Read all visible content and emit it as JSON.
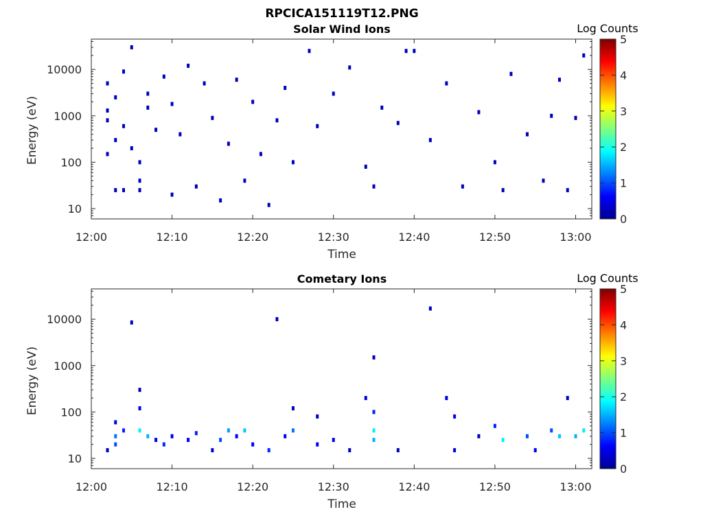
{
  "figure_title": "RPCICA151119T12.PNG",
  "chart_data": [
    {
      "type": "heatmap",
      "title": "Solar Wind Ions",
      "xlabel": "Time",
      "ylabel": "Energy (eV)",
      "yscale": "log",
      "xlim": [
        "12:00",
        "13:02"
      ],
      "ylim": [
        6,
        45000
      ],
      "x_ticks": [
        "12:00",
        "12:10",
        "12:20",
        "12:30",
        "12:40",
        "12:50",
        "13:00"
      ],
      "y_ticks": [
        10,
        100,
        1000,
        10000
      ],
      "y_tick_labels": [
        "10",
        "100",
        "1000",
        "10000"
      ],
      "colorbar": {
        "label": "Log Counts",
        "range": [
          0,
          5
        ],
        "ticks": [
          "0",
          "1",
          "2",
          "3",
          "4",
          "5"
        ],
        "colormap": "jet"
      },
      "data_description": "sparse low-count events across 10 eV - 20 keV, denser below 50 eV",
      "cells": [
        {
          "t": "12:02",
          "e": 1300,
          "c": 0.2
        },
        {
          "t": "12:02",
          "e": 5000,
          "c": 0.2
        },
        {
          "t": "12:02",
          "e": 800,
          "c": 0.2
        },
        {
          "t": "12:02",
          "e": 150,
          "c": 0.2
        },
        {
          "t": "12:03",
          "e": 2500,
          "c": 0.2
        },
        {
          "t": "12:03",
          "e": 300,
          "c": 0.2
        },
        {
          "t": "12:03",
          "e": 25,
          "c": 0.3
        },
        {
          "t": "12:04",
          "e": 25,
          "c": 0.3
        },
        {
          "t": "12:04",
          "e": 9000,
          "c": 0.2
        },
        {
          "t": "12:04",
          "e": 600,
          "c": 0.2
        },
        {
          "t": "12:05",
          "e": 200,
          "c": 0.2
        },
        {
          "t": "12:05",
          "e": 30000,
          "c": 0.2
        },
        {
          "t": "12:06",
          "e": 40,
          "c": 0.4
        },
        {
          "t": "12:06",
          "e": 25,
          "c": 0.4
        },
        {
          "t": "12:06",
          "e": 100,
          "c": 0.3
        },
        {
          "t": "12:07",
          "e": 3000,
          "c": 0.2
        },
        {
          "t": "12:07",
          "e": 1500,
          "c": 0.2
        },
        {
          "t": "12:08",
          "e": 500,
          "c": 0.2
        },
        {
          "t": "12:09",
          "e": 7000,
          "c": 0.2
        },
        {
          "t": "12:10",
          "e": 20,
          "c": 0.3
        },
        {
          "t": "12:10",
          "e": 1800,
          "c": 0.2
        },
        {
          "t": "12:11",
          "e": 400,
          "c": 0.2
        },
        {
          "t": "12:12",
          "e": 12000,
          "c": 0.2
        },
        {
          "t": "12:13",
          "e": 30,
          "c": 0.2
        },
        {
          "t": "12:14",
          "e": 5000,
          "c": 0.2
        },
        {
          "t": "12:15",
          "e": 900,
          "c": 0.2
        },
        {
          "t": "12:16",
          "e": 15,
          "c": 0.2
        },
        {
          "t": "12:17",
          "e": 250,
          "c": 0.2
        },
        {
          "t": "12:18",
          "e": 6000,
          "c": 0.2
        },
        {
          "t": "12:19",
          "e": 40,
          "c": 0.2
        },
        {
          "t": "12:20",
          "e": 2000,
          "c": 0.2
        },
        {
          "t": "12:21",
          "e": 150,
          "c": 0.2
        },
        {
          "t": "12:22",
          "e": 12,
          "c": 0.2
        },
        {
          "t": "12:23",
          "e": 800,
          "c": 0.2
        },
        {
          "t": "12:24",
          "e": 4000,
          "c": 0.2
        },
        {
          "t": "12:25",
          "e": 100,
          "c": 0.2
        },
        {
          "t": "12:27",
          "e": 25000,
          "c": 0.2
        },
        {
          "t": "12:28",
          "e": 600,
          "c": 0.2
        },
        {
          "t": "12:30",
          "e": 3000,
          "c": 0.2
        },
        {
          "t": "12:32",
          "e": 11000,
          "c": 0.2
        },
        {
          "t": "12:34",
          "e": 80,
          "c": 0.3
        },
        {
          "t": "12:35",
          "e": 30,
          "c": 0.3
        },
        {
          "t": "12:36",
          "e": 1500,
          "c": 0.2
        },
        {
          "t": "12:38",
          "e": 700,
          "c": 0.2
        },
        {
          "t": "12:39",
          "e": 25000,
          "c": 0.2
        },
        {
          "t": "12:40",
          "e": 25000,
          "c": 0.2
        },
        {
          "t": "12:42",
          "e": 300,
          "c": 0.2
        },
        {
          "t": "12:44",
          "e": 5000,
          "c": 0.2
        },
        {
          "t": "12:46",
          "e": 30,
          "c": 0.2
        },
        {
          "t": "12:48",
          "e": 1200,
          "c": 0.2
        },
        {
          "t": "12:50",
          "e": 100,
          "c": 0.2
        },
        {
          "t": "12:51",
          "e": 25,
          "c": 0.3
        },
        {
          "t": "12:52",
          "e": 8000,
          "c": 0.2
        },
        {
          "t": "12:54",
          "e": 400,
          "c": 0.2
        },
        {
          "t": "12:56",
          "e": 40,
          "c": 0.3
        },
        {
          "t": "12:57",
          "e": 1000,
          "c": 0.2
        },
        {
          "t": "12:58",
          "e": 6000,
          "c": 0.2
        },
        {
          "t": "12:59",
          "e": 25,
          "c": 0.3
        },
        {
          "t": "13:00",
          "e": 900,
          "c": 0.2
        },
        {
          "t": "13:01",
          "e": 20000,
          "c": 0.2
        }
      ]
    },
    {
      "type": "heatmap",
      "title": "Cometary Ions",
      "xlabel": "Time",
      "ylabel": "Energy (eV)",
      "yscale": "log",
      "xlim": [
        "12:00",
        "13:02"
      ],
      "ylim": [
        6,
        45000
      ],
      "x_ticks": [
        "12:00",
        "12:10",
        "12:20",
        "12:30",
        "12:40",
        "12:50",
        "13:00"
      ],
      "y_ticks": [
        10,
        100,
        1000,
        10000
      ],
      "y_tick_labels": [
        "10",
        "100",
        "1000",
        "10000"
      ],
      "colorbar": {
        "label": "Log Counts",
        "range": [
          0,
          5
        ],
        "ticks": [
          "0",
          "1",
          "2",
          "3",
          "4",
          "5"
        ],
        "colormap": "jet"
      },
      "data_description": "periodic bursts of cometary ions mostly at 10-100 eV, peaks up to ~2 log counts",
      "cells": [
        {
          "t": "12:02",
          "e": 15,
          "c": 0.2
        },
        {
          "t": "12:03",
          "e": 30,
          "c": 1.2
        },
        {
          "t": "12:03",
          "e": 20,
          "c": 1.0
        },
        {
          "t": "12:03",
          "e": 60,
          "c": 0.4
        },
        {
          "t": "12:04",
          "e": 40,
          "c": 0.8
        },
        {
          "t": "12:05",
          "e": 8500,
          "c": 0.2
        },
        {
          "t": "12:06",
          "e": 40,
          "c": 1.8
        },
        {
          "t": "12:06",
          "e": 120,
          "c": 0.6
        },
        {
          "t": "12:06",
          "e": 300,
          "c": 0.3
        },
        {
          "t": "12:07",
          "e": 30,
          "c": 1.5
        },
        {
          "t": "12:08",
          "e": 25,
          "c": 0.5
        },
        {
          "t": "12:09",
          "e": 20,
          "c": 0.8
        },
        {
          "t": "12:10",
          "e": 30,
          "c": 0.5
        },
        {
          "t": "12:12",
          "e": 25,
          "c": 0.6
        },
        {
          "t": "12:13",
          "e": 35,
          "c": 0.8
        },
        {
          "t": "12:15",
          "e": 15,
          "c": 0.4
        },
        {
          "t": "12:16",
          "e": 25,
          "c": 1.0
        },
        {
          "t": "12:17",
          "e": 40,
          "c": 1.4
        },
        {
          "t": "12:18",
          "e": 30,
          "c": 0.6
        },
        {
          "t": "12:19",
          "e": 40,
          "c": 1.6
        },
        {
          "t": "12:20",
          "e": 20,
          "c": 0.6
        },
        {
          "t": "12:22",
          "e": 15,
          "c": 0.8
        },
        {
          "t": "12:23",
          "e": 10000,
          "c": 0.2
        },
        {
          "t": "12:24",
          "e": 30,
          "c": 0.5
        },
        {
          "t": "12:25",
          "e": 40,
          "c": 1.2
        },
        {
          "t": "12:25",
          "e": 120,
          "c": 0.4
        },
        {
          "t": "12:28",
          "e": 20,
          "c": 0.6
        },
        {
          "t": "12:28",
          "e": 80,
          "c": 0.4
        },
        {
          "t": "12:30",
          "e": 25,
          "c": 0.5
        },
        {
          "t": "12:32",
          "e": 15,
          "c": 0.3
        },
        {
          "t": "12:34",
          "e": 200,
          "c": 0.5
        },
        {
          "t": "12:35",
          "e": 40,
          "c": 1.8
        },
        {
          "t": "12:35",
          "e": 100,
          "c": 0.8
        },
        {
          "t": "12:35",
          "e": 25,
          "c": 1.5
        },
        {
          "t": "12:35",
          "e": 1500,
          "c": 0.2
        },
        {
          "t": "12:38",
          "e": 15,
          "c": 0.3
        },
        {
          "t": "12:42",
          "e": 17000,
          "c": 0.2
        },
        {
          "t": "12:44",
          "e": 200,
          "c": 0.5
        },
        {
          "t": "12:45",
          "e": 80,
          "c": 0.6
        },
        {
          "t": "12:45",
          "e": 15,
          "c": 0.4
        },
        {
          "t": "12:48",
          "e": 30,
          "c": 0.3
        },
        {
          "t": "12:50",
          "e": 50,
          "c": 0.8
        },
        {
          "t": "12:51",
          "e": 25,
          "c": 1.8
        },
        {
          "t": "12:54",
          "e": 30,
          "c": 1.0
        },
        {
          "t": "12:55",
          "e": 15,
          "c": 0.6
        },
        {
          "t": "12:57",
          "e": 40,
          "c": 1.0
        },
        {
          "t": "12:58",
          "e": 30,
          "c": 1.6
        },
        {
          "t": "12:59",
          "e": 200,
          "c": 0.3
        },
        {
          "t": "13:00",
          "e": 30,
          "c": 1.5
        },
        {
          "t": "13:01",
          "e": 40,
          "c": 1.8
        }
      ]
    }
  ]
}
